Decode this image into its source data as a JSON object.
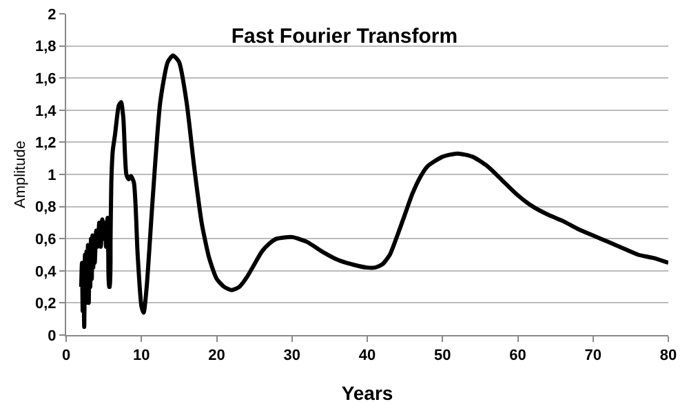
{
  "chart_data": {
    "type": "line",
    "title": "Fast Fourier Transform",
    "xlabel": "Years",
    "ylabel": "Amplitude",
    "x": [
      2.0,
      2.1,
      2.2,
      2.3,
      2.4,
      2.5,
      2.6,
      2.7,
      2.8,
      2.9,
      3.0,
      3.1,
      3.2,
      3.3,
      3.4,
      3.5,
      3.6,
      3.7,
      3.8,
      4.0,
      4.2,
      4.4,
      4.6,
      4.8,
      5.0,
      5.2,
      5.3,
      5.5,
      5.6,
      5.7,
      5.8,
      5.9,
      6.0,
      6.2,
      6.5,
      7.0,
      7.3,
      7.6,
      8.0,
      8.3,
      8.6,
      9.0,
      9.5,
      10.0,
      10.3,
      10.7,
      11.5,
      12.5,
      13.5,
      14.2,
      15,
      16,
      17,
      18,
      19,
      20,
      21,
      22,
      23,
      24,
      25,
      26,
      27,
      28,
      30,
      32,
      34,
      36,
      38,
      40,
      41,
      42,
      43,
      44,
      45,
      46,
      47,
      48,
      50,
      52,
      54,
      56,
      58,
      60,
      62,
      64,
      66,
      68,
      70,
      72,
      74,
      76,
      78,
      80
    ],
    "series": [
      {
        "color": "#000000",
        "values": [
          0.3,
          0.45,
          0.15,
          0.4,
          0.05,
          0.5,
          0.2,
          0.52,
          0.25,
          0.56,
          0.2,
          0.55,
          0.3,
          0.6,
          0.35,
          0.62,
          0.42,
          0.6,
          0.45,
          0.65,
          0.55,
          0.7,
          0.55,
          0.72,
          0.6,
          0.7,
          0.55,
          0.73,
          0.5,
          0.3,
          0.3,
          0.6,
          0.95,
          1.15,
          1.25,
          1.43,
          1.45,
          1.35,
          1.0,
          0.97,
          0.99,
          0.95,
          0.5,
          0.18,
          0.14,
          0.3,
          0.85,
          1.45,
          1.7,
          1.74,
          1.7,
          1.45,
          1.05,
          0.7,
          0.48,
          0.35,
          0.3,
          0.28,
          0.3,
          0.36,
          0.44,
          0.52,
          0.57,
          0.6,
          0.61,
          0.58,
          0.52,
          0.47,
          0.44,
          0.42,
          0.42,
          0.44,
          0.5,
          0.62,
          0.75,
          0.88,
          0.98,
          1.05,
          1.11,
          1.13,
          1.11,
          1.05,
          0.96,
          0.87,
          0.8,
          0.75,
          0.71,
          0.66,
          0.62,
          0.58,
          0.54,
          0.5,
          0.48,
          0.45
        ]
      }
    ],
    "xlim": [
      0,
      80
    ],
    "xticks": [
      0,
      10,
      20,
      30,
      40,
      50,
      60,
      70,
      80
    ],
    "ylim": [
      0,
      2
    ],
    "yticks": [
      0,
      {
        "value": 0.2,
        "label": "0,2"
      },
      {
        "value": 0.4,
        "label": "0,4"
      },
      {
        "value": 0.6,
        "label": "0,6"
      },
      {
        "value": 0.8,
        "label": "0,8"
      },
      1,
      {
        "value": 1.2,
        "label": "1,2"
      },
      {
        "value": 1.4,
        "label": "1,4"
      },
      {
        "value": 1.6,
        "label": "1,6"
      },
      {
        "value": 1.8,
        "label": "1,8"
      },
      2
    ],
    "grid": "y",
    "legend": false,
    "marker": "none",
    "line_style": "solid"
  }
}
